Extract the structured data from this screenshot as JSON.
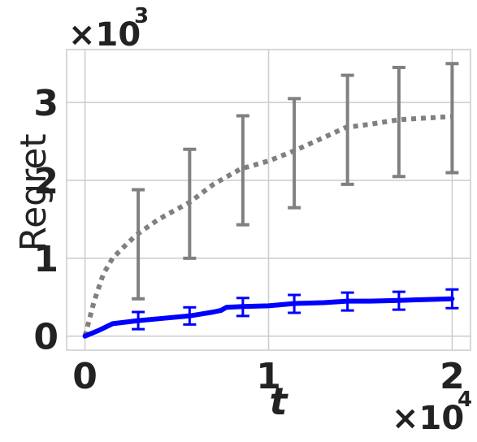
{
  "chart_data": {
    "type": "line",
    "title": "",
    "xlabel": "t",
    "ylabel": "Regret",
    "x_multiplier": "×10",
    "x_multiplier_exp": "4",
    "y_multiplier": "×10",
    "y_multiplier_exp": "3",
    "xlim": [
      -0.1,
      2.1
    ],
    "ylim": [
      -0.18,
      3.68
    ],
    "x_ticks": [
      0,
      1,
      2
    ],
    "x_tick_labels": [
      "0",
      "1",
      "2"
    ],
    "y_ticks": [
      0,
      1,
      2,
      3
    ],
    "y_tick_labels": [
      "0",
      "1",
      "2",
      "3"
    ],
    "grid": true,
    "legend": "none",
    "series": [
      {
        "color": "#808080",
        "style": "dotted",
        "x": [
          0,
          0.05,
          0.1,
          0.15,
          0.2,
          0.28,
          0.4,
          0.57,
          0.7,
          0.85,
          1.0,
          1.14,
          1.3,
          1.42,
          1.55,
          1.71,
          1.85,
          2.0
        ],
        "y": [
          0,
          0.45,
          0.8,
          1.0,
          1.12,
          1.3,
          1.5,
          1.72,
          1.95,
          2.15,
          2.25,
          2.38,
          2.55,
          2.68,
          2.72,
          2.78,
          2.8,
          2.82
        ],
        "error_bars": [
          {
            "x": 0.29,
            "low": 0.48,
            "high": 1.88
          },
          {
            "x": 0.57,
            "low": 1.0,
            "high": 2.4
          },
          {
            "x": 0.86,
            "low": 1.43,
            "high": 2.83
          },
          {
            "x": 1.14,
            "low": 1.65,
            "high": 3.05
          },
          {
            "x": 1.43,
            "low": 1.95,
            "high": 3.35
          },
          {
            "x": 1.71,
            "low": 2.05,
            "high": 3.45
          },
          {
            "x": 2.0,
            "low": 2.1,
            "high": 3.5
          }
        ]
      },
      {
        "color": "#0000ff",
        "style": "solid",
        "x": [
          0,
          0.08,
          0.15,
          0.29,
          0.43,
          0.57,
          0.7,
          0.74,
          0.77,
          0.86,
          1.0,
          1.1,
          1.14,
          1.3,
          1.43,
          1.55,
          1.71,
          1.85,
          2.0
        ],
        "y": [
          0,
          0.08,
          0.16,
          0.2,
          0.23,
          0.26,
          0.31,
          0.33,
          0.37,
          0.38,
          0.39,
          0.41,
          0.42,
          0.43,
          0.45,
          0.45,
          0.46,
          0.47,
          0.48
        ],
        "error_bars": [
          {
            "x": 0.29,
            "low": 0.09,
            "high": 0.31
          },
          {
            "x": 0.57,
            "low": 0.15,
            "high": 0.37
          },
          {
            "x": 0.86,
            "low": 0.26,
            "high": 0.49
          },
          {
            "x": 1.14,
            "low": 0.3,
            "high": 0.53
          },
          {
            "x": 1.43,
            "low": 0.33,
            "high": 0.56
          },
          {
            "x": 1.71,
            "low": 0.34,
            "high": 0.57
          },
          {
            "x": 2.0,
            "low": 0.36,
            "high": 0.6
          }
        ]
      }
    ]
  }
}
